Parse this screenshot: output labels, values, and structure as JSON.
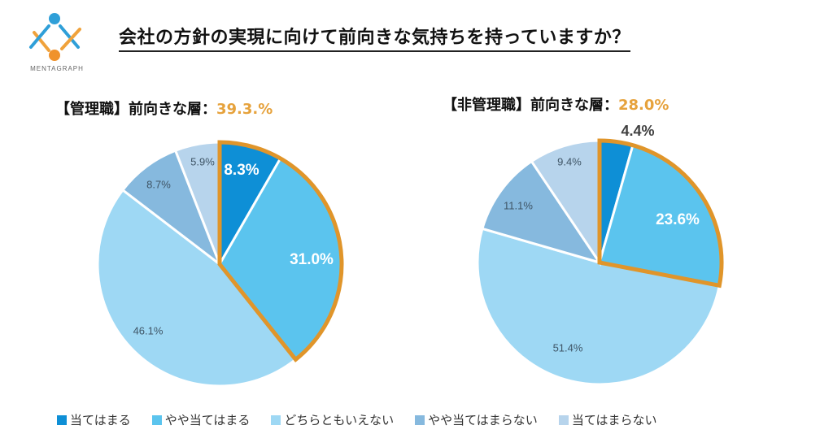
{
  "brand": {
    "name": "MENTAGRAPH",
    "colors": {
      "blue": "#2F9FD8",
      "orange": "#F0922B"
    }
  },
  "title": "会社の方針の実現に向けて前向きな気持ちを持っていますか？",
  "highlight_color": "#E0952A",
  "chart_data": [
    {
      "type": "pie",
      "title": "【管理職】前向きな層：",
      "title_value": "39.3.%",
      "start": "top",
      "direction": "clockwise",
      "categories": [
        "当てはまる",
        "やや当てはまる",
        "どちらともいえない",
        "やや当てはまらない",
        "当てはまらない"
      ],
      "values": [
        8.3,
        31.0,
        46.1,
        8.7,
        5.9
      ],
      "labels": [
        "8.3%",
        "31.0%",
        "46.1%",
        "8.7%",
        "5.9%"
      ],
      "highlighted": [
        0,
        1
      ]
    },
    {
      "type": "pie",
      "title": "【非管理職】前向きな層：",
      "title_value": "28.0%",
      "start": "top",
      "direction": "clockwise",
      "categories": [
        "当てはまる",
        "やや当てはまる",
        "どちらともいえない",
        "やや当てはまらない",
        "当てはまらない"
      ],
      "values": [
        4.4,
        23.6,
        51.4,
        11.1,
        9.4
      ],
      "labels": [
        "4.4%",
        "23.6%",
        "51.4%",
        "11.1%",
        "9.4%"
      ],
      "highlighted": [
        0,
        1
      ]
    }
  ],
  "legend": [
    {
      "label": "当てはまる",
      "color": "#0E8FD6"
    },
    {
      "label": "やや当てはまる",
      "color": "#5BC4EE"
    },
    {
      "label": "どちらともいえない",
      "color": "#9ED8F4"
    },
    {
      "label": "やや当てはまらない",
      "color": "#86B9DE"
    },
    {
      "label": "当てはまらない",
      "color": "#B7D4EC"
    }
  ]
}
